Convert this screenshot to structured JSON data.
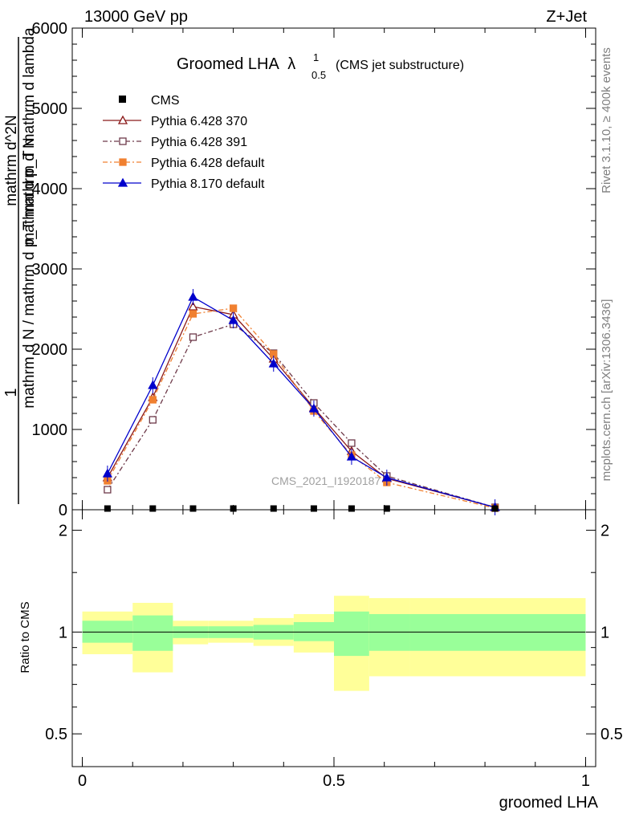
{
  "header": {
    "left": "13000 GeV pp",
    "right": "Z+Jet"
  },
  "side_text": {
    "rivet": "Rivet 3.1.10, ≥ 400k events",
    "mcplots": "mcplots.cern.ch [arXiv:1306.3436]"
  },
  "chart_data": {
    "type": "line",
    "title_main": "Groomed LHA",
    "title_symbol": "λ",
    "title_sup": "1",
    "title_sub": "0.5",
    "title_suffix": "(CMS jet substructure)",
    "watermark": "CMS_2021_I1920187",
    "ylabel_numerator": "1",
    "ylabel_denominator": "mathrm d N / mathrm d p_T mathrm d N",
    "ylabel_top": "mathrm d^2N",
    "ylabel_mid": "mathrm d p_T mathrm d lambda",
    "xlabel": "groomed LHA",
    "ratio_ylabel": "Ratio to CMS",
    "xlim": [
      -0.02,
      1.02
    ],
    "ylim": [
      0,
      6000
    ],
    "ratio_ylim": [
      0.4,
      2.3
    ],
    "x_ticks": [
      {
        "v": 0,
        "label": "0"
      },
      {
        "v": 0.5,
        "label": "0.5"
      },
      {
        "v": 1,
        "label": "1"
      }
    ],
    "y_ticks": [
      {
        "v": 0,
        "label": "0"
      },
      {
        "v": 1000,
        "label": "1000"
      },
      {
        "v": 2000,
        "label": "2000"
      },
      {
        "v": 3000,
        "label": "3000"
      },
      {
        "v": 4000,
        "label": "4000"
      },
      {
        "v": 5000,
        "label": "5000"
      },
      {
        "v": 6000,
        "label": "6000"
      }
    ],
    "ratio_ticks": [
      {
        "v": 0.5,
        "label": "0.5"
      },
      {
        "v": 1,
        "label": "1"
      },
      {
        "v": 2,
        "label": "2"
      }
    ],
    "bins": [
      {
        "lo": 0.0,
        "hi": 0.1
      },
      {
        "lo": 0.1,
        "hi": 0.18
      },
      {
        "lo": 0.18,
        "hi": 0.25
      },
      {
        "lo": 0.25,
        "hi": 0.34
      },
      {
        "lo": 0.34,
        "hi": 0.42
      },
      {
        "lo": 0.42,
        "hi": 0.5
      },
      {
        "lo": 0.5,
        "hi": 0.57
      },
      {
        "lo": 0.57,
        "hi": 0.65
      },
      {
        "lo": 0.65,
        "hi": 1.0
      }
    ],
    "cms": {
      "name": "CMS",
      "x": [
        0.05,
        0.14,
        0.22,
        0.3,
        0.38,
        0.46,
        0.535,
        0.605,
        0.82
      ],
      "y": [
        5,
        5,
        5,
        5,
        5,
        5,
        5,
        5,
        5
      ],
      "ratio_band_inner": [
        [
          0.93,
          1.08
        ],
        [
          0.88,
          1.12
        ],
        [
          0.96,
          1.04
        ],
        [
          0.96,
          1.04
        ],
        [
          0.95,
          1.05
        ],
        [
          0.94,
          1.07
        ],
        [
          0.85,
          1.15
        ],
        [
          0.88,
          1.13
        ],
        [
          0.88,
          1.13
        ]
      ],
      "ratio_band_outer": [
        [
          0.86,
          1.15
        ],
        [
          0.76,
          1.22
        ],
        [
          0.92,
          1.08
        ],
        [
          0.93,
          1.08
        ],
        [
          0.91,
          1.1
        ],
        [
          0.87,
          1.13
        ],
        [
          0.67,
          1.28
        ],
        [
          0.74,
          1.26
        ],
        [
          0.74,
          1.26
        ]
      ]
    },
    "series": [
      {
        "name": "Pythia 6.428 370",
        "color": "#8b1a1a",
        "marker": "triangle-open",
        "dash": "",
        "x": [
          0.05,
          0.14,
          0.22,
          0.3,
          0.38,
          0.46,
          0.535,
          0.605,
          0.82
        ],
        "y": [
          400,
          1400,
          2530,
          2430,
          1880,
          1270,
          730,
          390,
          30
        ]
      },
      {
        "name": "Pythia 6.428 391",
        "color": "#6e3a4a",
        "marker": "square-open",
        "dash": "6,3,2,3",
        "x": [
          0.05,
          0.14,
          0.22,
          0.3,
          0.38,
          0.46,
          0.535,
          0.605,
          0.82
        ],
        "y": [
          250,
          1120,
          2150,
          2310,
          1950,
          1330,
          830,
          420,
          30
        ]
      },
      {
        "name": "Pythia 6.428 default",
        "color": "#f08030",
        "marker": "square-filled",
        "dash": "6,3,2,3",
        "x": [
          0.05,
          0.14,
          0.22,
          0.3,
          0.38,
          0.46,
          0.535,
          0.605,
          0.82
        ],
        "y": [
          360,
          1370,
          2440,
          2510,
          1940,
          1230,
          680,
          340,
          20
        ]
      },
      {
        "name": "Pythia 8.170 default",
        "color": "#0000cc",
        "marker": "triangle-filled",
        "dash": "",
        "x": [
          0.05,
          0.14,
          0.22,
          0.3,
          0.38,
          0.46,
          0.535,
          0.605,
          0.82
        ],
        "y": [
          450,
          1550,
          2650,
          2360,
          1820,
          1260,
          660,
          400,
          30
        ]
      }
    ],
    "legend_position": "top-left"
  }
}
